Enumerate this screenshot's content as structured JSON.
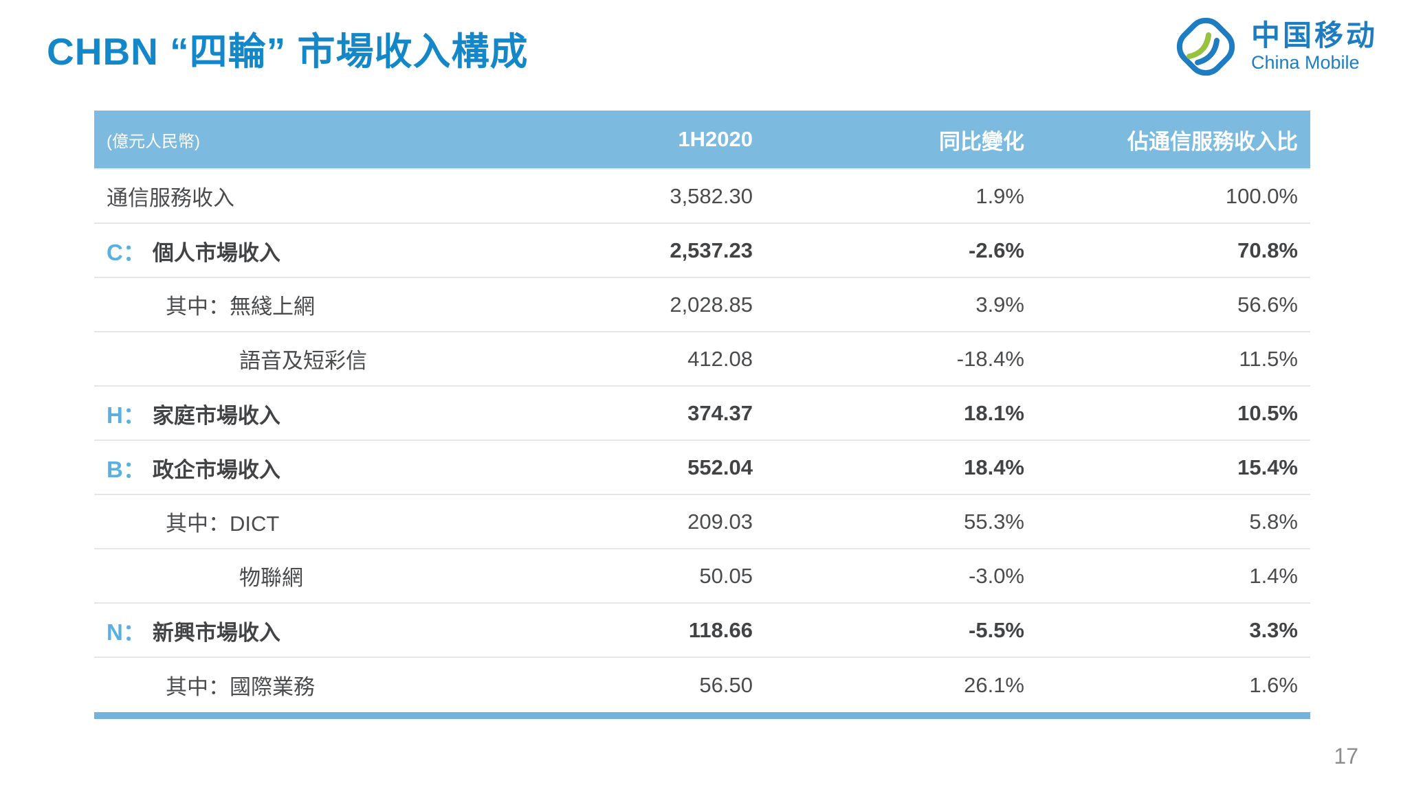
{
  "page": {
    "title": "CHBN “四輪” 市場收入構成",
    "page_number": "17"
  },
  "logo": {
    "cn": "中国移动",
    "en": "China Mobile"
  },
  "table": {
    "unit_note": "(億元人民幣)",
    "columns": [
      "1H2020",
      "同比變化",
      "佔通信服務收入比"
    ],
    "rows": [
      {
        "prefix": "",
        "label": "通信服務收入",
        "indent": 0,
        "bold": false,
        "values": [
          "3,582.30",
          "1.9%",
          "100.0%"
        ]
      },
      {
        "prefix": "C：",
        "label": "個人市場收入",
        "indent": 0,
        "bold": true,
        "values": [
          "2,537.23",
          "-2.6%",
          "70.8%"
        ]
      },
      {
        "prefix": "",
        "label": "其中：無綫上網",
        "indent": 1,
        "bold": false,
        "values": [
          "2,028.85",
          "3.9%",
          "56.6%"
        ]
      },
      {
        "prefix": "",
        "label": "語音及短彩信",
        "indent": 2,
        "bold": false,
        "values": [
          "412.08",
          "-18.4%",
          "11.5%"
        ]
      },
      {
        "prefix": "H：",
        "label": "家庭市場收入",
        "indent": 0,
        "bold": true,
        "values": [
          "374.37",
          "18.1%",
          "10.5%"
        ]
      },
      {
        "prefix": "B：",
        "label": "政企市場收入",
        "indent": 0,
        "bold": true,
        "values": [
          "552.04",
          "18.4%",
          "15.4%"
        ]
      },
      {
        "prefix": "",
        "label": "其中：DICT",
        "indent": 1,
        "bold": false,
        "values": [
          "209.03",
          "55.3%",
          "5.8%"
        ]
      },
      {
        "prefix": "",
        "label": "物聯網",
        "indent": 2,
        "bold": false,
        "values": [
          "50.05",
          "-3.0%",
          "1.4%"
        ]
      },
      {
        "prefix": "N：",
        "label": "新興市場收入",
        "indent": 0,
        "bold": true,
        "values": [
          "118.66",
          "-5.5%",
          "3.3%"
        ]
      },
      {
        "prefix": "",
        "label": "其中：國際業務",
        "indent": 1,
        "bold": false,
        "values": [
          "56.50",
          "26.1%",
          "1.6%"
        ]
      }
    ]
  },
  "colors": {
    "title_blue": "#1487c9",
    "header_bg": "#7cbbdf",
    "prefix_blue": "#5bb0e2",
    "logo_blue": "#1e7dc1",
    "logo_green": "#96c23d",
    "body_text": "#4a4b4d",
    "divider": "#e6e6e6",
    "bottom_bar": "#74b4dc",
    "page_number_gray": "#8c8c8c"
  }
}
